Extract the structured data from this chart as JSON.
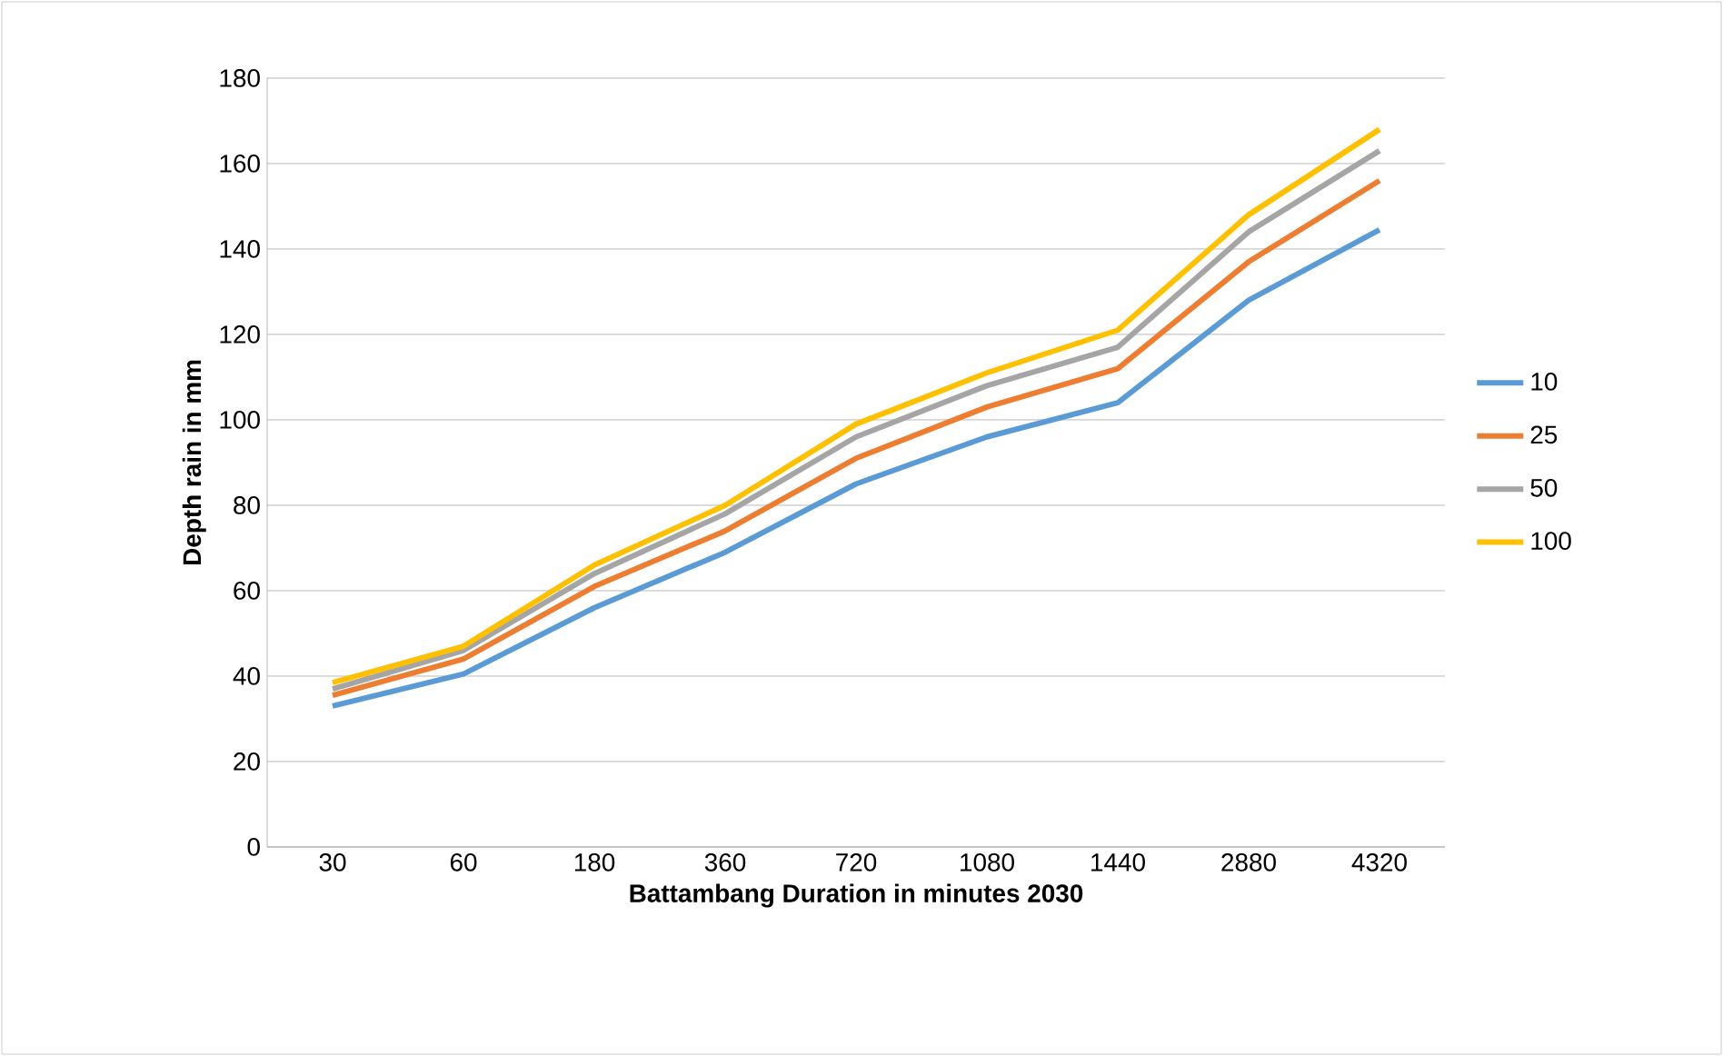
{
  "chart_data": {
    "type": "line",
    "xlabel": "Battambang Duration in minutes 2030",
    "ylabel": "Depth rain in mm",
    "categories": [
      "30",
      "60",
      "180",
      "360",
      "720",
      "1080",
      "1440",
      "2880",
      "4320"
    ],
    "series": [
      {
        "name": "10",
        "color": "#5b9bd5",
        "values": [
          33,
          40.5,
          56,
          69,
          85,
          96,
          104,
          128,
          144.5
        ]
      },
      {
        "name": "25",
        "color": "#ed7d31",
        "values": [
          35.5,
          44,
          61,
          74,
          91,
          103,
          112,
          137,
          156
        ]
      },
      {
        "name": "50",
        "color": "#a5a5a5",
        "values": [
          37,
          46,
          64,
          78,
          96,
          108,
          117,
          144,
          163
        ]
      },
      {
        "name": "100",
        "color": "#ffc000",
        "values": [
          38.5,
          47,
          66,
          80,
          99,
          111,
          121,
          148,
          168
        ]
      }
    ],
    "ylim": [
      0,
      180
    ],
    "yticks": [
      0,
      20,
      40,
      60,
      80,
      100,
      120,
      140,
      160,
      180
    ],
    "grid": "y",
    "legend": "right",
    "marker": "none",
    "line_style": "solid"
  }
}
